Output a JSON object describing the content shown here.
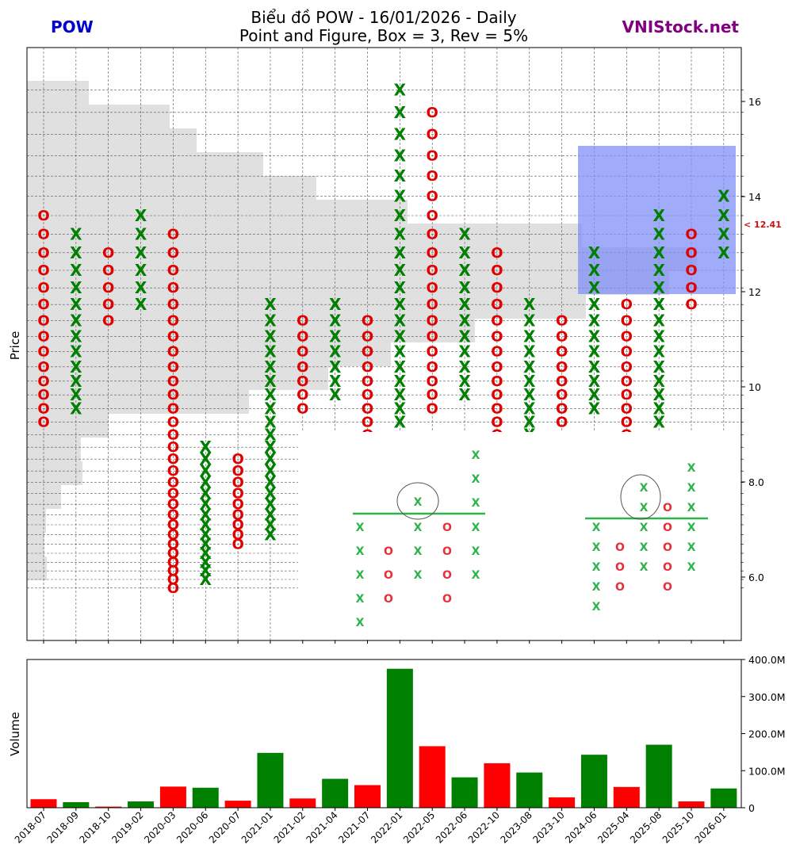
{
  "header": {
    "left": "POW",
    "title_line1": "Biểu đồ POW - 16/01/2026 - Daily",
    "title_line2": "Point and Figure, Box = 3, Rev = 5%",
    "right": "VNIStock.net",
    "left_color": "#0000cc",
    "right_color": "#800080"
  },
  "chart_data": [
    {
      "type": "point_and_figure",
      "ylabel": "Price",
      "ylim": [
        4.9,
        17.5
      ],
      "yticks": [
        "6.0",
        "8.0",
        "10",
        "12",
        "14",
        "16"
      ],
      "current_price_label": "< 12.41",
      "box_values": [
        5.77,
        5.95,
        6.13,
        6.31,
        6.5,
        6.69,
        6.89,
        7.1,
        7.31,
        7.53,
        7.76,
        7.99,
        8.23,
        8.48,
        8.73,
        8.99,
        9.26,
        9.54,
        9.83,
        10.12,
        10.42,
        10.74,
        11.06,
        11.39,
        11.73,
        12.08,
        12.45,
        12.82,
        13.21,
        13.6,
        14.01,
        14.43,
        14.86,
        15.31,
        15.77,
        16.24
      ],
      "columns": [
        {
          "date": "2018-07",
          "type": "O",
          "low": 9.26,
          "high": 13.6
        },
        {
          "date": "2018-09",
          "type": "X",
          "low": 9.54,
          "high": 13.21
        },
        {
          "date": "2018-10",
          "type": "O",
          "low": 11.39,
          "high": 12.82
        },
        {
          "date": "2019-02",
          "type": "X",
          "low": 11.73,
          "high": 13.6
        },
        {
          "date": "2020-03",
          "type": "O",
          "low": 5.77,
          "high": 13.21
        },
        {
          "date": "2020-06",
          "type": "X",
          "low": 5.95,
          "high": 8.73
        },
        {
          "date": "2020-07",
          "type": "O",
          "low": 6.69,
          "high": 8.48
        },
        {
          "date": "2021-01",
          "type": "X",
          "low": 6.89,
          "high": 11.73
        },
        {
          "date": "2021-02",
          "type": "O",
          "low": 9.54,
          "high": 11.39
        },
        {
          "date": "2021-04",
          "type": "X",
          "low": 9.83,
          "high": 11.73
        },
        {
          "date": "2021-07",
          "type": "O",
          "low": 8.73,
          "high": 11.39
        },
        {
          "date": "2022-01",
          "type": "X",
          "low": 9.26,
          "high": 16.24
        },
        {
          "date": "2022-05",
          "type": "O",
          "low": 9.54,
          "high": 15.77
        },
        {
          "date": "2022-06",
          "type": "X",
          "low": 9.83,
          "high": 13.21
        },
        {
          "date": "2022-10",
          "type": "O",
          "low": 8.48,
          "high": 12.82
        },
        {
          "date": "2023-08",
          "type": "X",
          "low": 8.73,
          "high": 11.73
        },
        {
          "date": "2023-10",
          "type": "O",
          "low": 9.26,
          "high": 11.39
        },
        {
          "date": "2024-06",
          "type": "X",
          "low": 9.54,
          "high": 12.82
        },
        {
          "date": "2025-04",
          "type": "O",
          "low": 8.73,
          "high": 11.73
        },
        {
          "date": "2025-08",
          "type": "X",
          "low": 9.26,
          "high": 13.6
        },
        {
          "date": "2025-10",
          "type": "O",
          "low": 11.73,
          "high": 13.21
        },
        {
          "date": "2026-01",
          "type": "X",
          "low": 12.82,
          "high": 14.01
        }
      ],
      "volume_profile_note": "horizontal grey bars on the left",
      "colors": {
        "x": "#008000",
        "o": "#e00000",
        "highlight": "#8090f8",
        "profile": "#e0e0e0"
      }
    },
    {
      "type": "bar",
      "ylabel": "Volume",
      "ylim": [
        0,
        400
      ],
      "unit": "M",
      "yticks": [
        "0",
        "100.0M",
        "200.0M",
        "300.0M",
        "400.0M"
      ],
      "categories": [
        "2018-07",
        "2018-09",
        "2018-10",
        "2019-02",
        "2020-03",
        "2020-06",
        "2020-07",
        "2021-01",
        "2021-02",
        "2021-04",
        "2021-07",
        "2022-01",
        "2022-05",
        "2022-06",
        "2022-10",
        "2023-08",
        "2023-10",
        "2024-06",
        "2025-04",
        "2025-08",
        "2025-10",
        "2026-01"
      ],
      "values": [
        23,
        15,
        3,
        17,
        57,
        54,
        19,
        148,
        25,
        78,
        61,
        375,
        166,
        82,
        120,
        95,
        28,
        143,
        56,
        170,
        17,
        52
      ],
      "colors": [
        "red",
        "green",
        "red",
        "green",
        "red",
        "green",
        "red",
        "green",
        "red",
        "green",
        "red",
        "green",
        "red",
        "green",
        "red",
        "green",
        "red",
        "green",
        "red",
        "green",
        "red",
        "green"
      ]
    }
  ]
}
